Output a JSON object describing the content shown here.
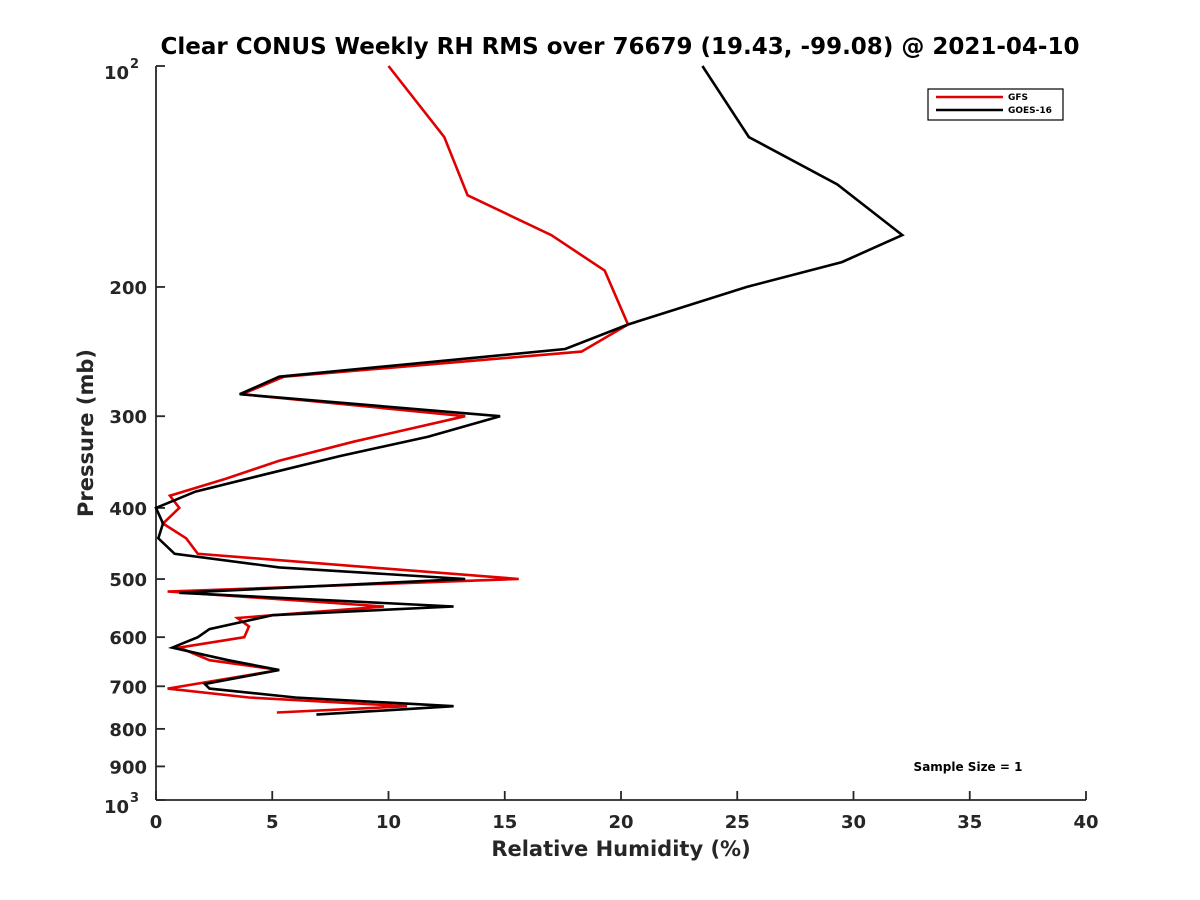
{
  "chart_data": {
    "type": "line",
    "title": "Clear CONUS Weekly RH RMS over 76679 (19.43, -99.08) @ 2021-04-10",
    "xlabel": "Relative Humidity (%)",
    "ylabel": "Pressure (mb)",
    "xlim": [
      0,
      40
    ],
    "ylim": [
      100,
      1000
    ],
    "y_scale": "log",
    "y_reversed": true,
    "x_ticks": [
      "0",
      "5",
      "10",
      "15",
      "20",
      "25",
      "30",
      "35",
      "40"
    ],
    "y_ticks": [
      {
        "value": 100,
        "base": "10",
        "exp": "2"
      },
      {
        "value": 200,
        "label": "200"
      },
      {
        "value": 300,
        "label": "300"
      },
      {
        "value": 400,
        "label": "400"
      },
      {
        "value": 500,
        "label": "500"
      },
      {
        "value": 600,
        "label": "600"
      },
      {
        "value": 700,
        "label": "700"
      },
      {
        "value": 800,
        "label": "800"
      },
      {
        "value": 900,
        "label": "900"
      },
      {
        "value": 1000,
        "base": "10",
        "exp": "3"
      }
    ],
    "legend_position": "top-right",
    "annotation": "Sample Size = 1",
    "series": [
      {
        "name": "GFS",
        "color": "#e00000",
        "points": [
          [
            10.0,
            100
          ],
          [
            12.4,
            125
          ],
          [
            13.4,
            150
          ],
          [
            17.0,
            170
          ],
          [
            19.3,
            190
          ],
          [
            20.3,
            225
          ],
          [
            18.3,
            245
          ],
          [
            5.5,
            265
          ],
          [
            3.7,
            280
          ],
          [
            13.3,
            300
          ],
          [
            8.5,
            325
          ],
          [
            5.3,
            345
          ],
          [
            3.0,
            365
          ],
          [
            0.6,
            385
          ],
          [
            1.0,
            400
          ],
          [
            0.3,
            420
          ],
          [
            1.3,
            440
          ],
          [
            1.8,
            462
          ],
          [
            15.6,
            500
          ],
          [
            0.5,
            520
          ],
          [
            9.8,
            545
          ],
          [
            3.5,
            565
          ],
          [
            4.0,
            580
          ],
          [
            3.8,
            600
          ],
          [
            1.0,
            620
          ],
          [
            2.3,
            645
          ],
          [
            5.3,
            665
          ],
          [
            0.5,
            705
          ],
          [
            4.0,
            725
          ],
          [
            10.8,
            745
          ],
          [
            5.2,
            760
          ]
        ]
      },
      {
        "name": "GOES-16",
        "color": "#000000",
        "points": [
          [
            23.5,
            100
          ],
          [
            25.5,
            125
          ],
          [
            29.3,
            145
          ],
          [
            32.1,
            170
          ],
          [
            29.5,
            185
          ],
          [
            25.4,
            200
          ],
          [
            20.3,
            225
          ],
          [
            17.6,
            243
          ],
          [
            5.3,
            265
          ],
          [
            3.6,
            280
          ],
          [
            14.8,
            300
          ],
          [
            11.7,
            320
          ],
          [
            7.9,
            340
          ],
          [
            4.7,
            360
          ],
          [
            1.7,
            380
          ],
          [
            0.0,
            400
          ],
          [
            0.3,
            420
          ],
          [
            0.1,
            440
          ],
          [
            0.8,
            462
          ],
          [
            5.3,
            482
          ],
          [
            13.3,
            500
          ],
          [
            1.0,
            522
          ],
          [
            12.8,
            545
          ],
          [
            5.0,
            560
          ],
          [
            2.3,
            585
          ],
          [
            1.8,
            600
          ],
          [
            0.7,
            620
          ],
          [
            3.1,
            645
          ],
          [
            5.3,
            665
          ],
          [
            2.1,
            695
          ],
          [
            2.3,
            705
          ],
          [
            6.0,
            725
          ],
          [
            12.8,
            745
          ],
          [
            6.9,
            765
          ]
        ]
      }
    ]
  }
}
